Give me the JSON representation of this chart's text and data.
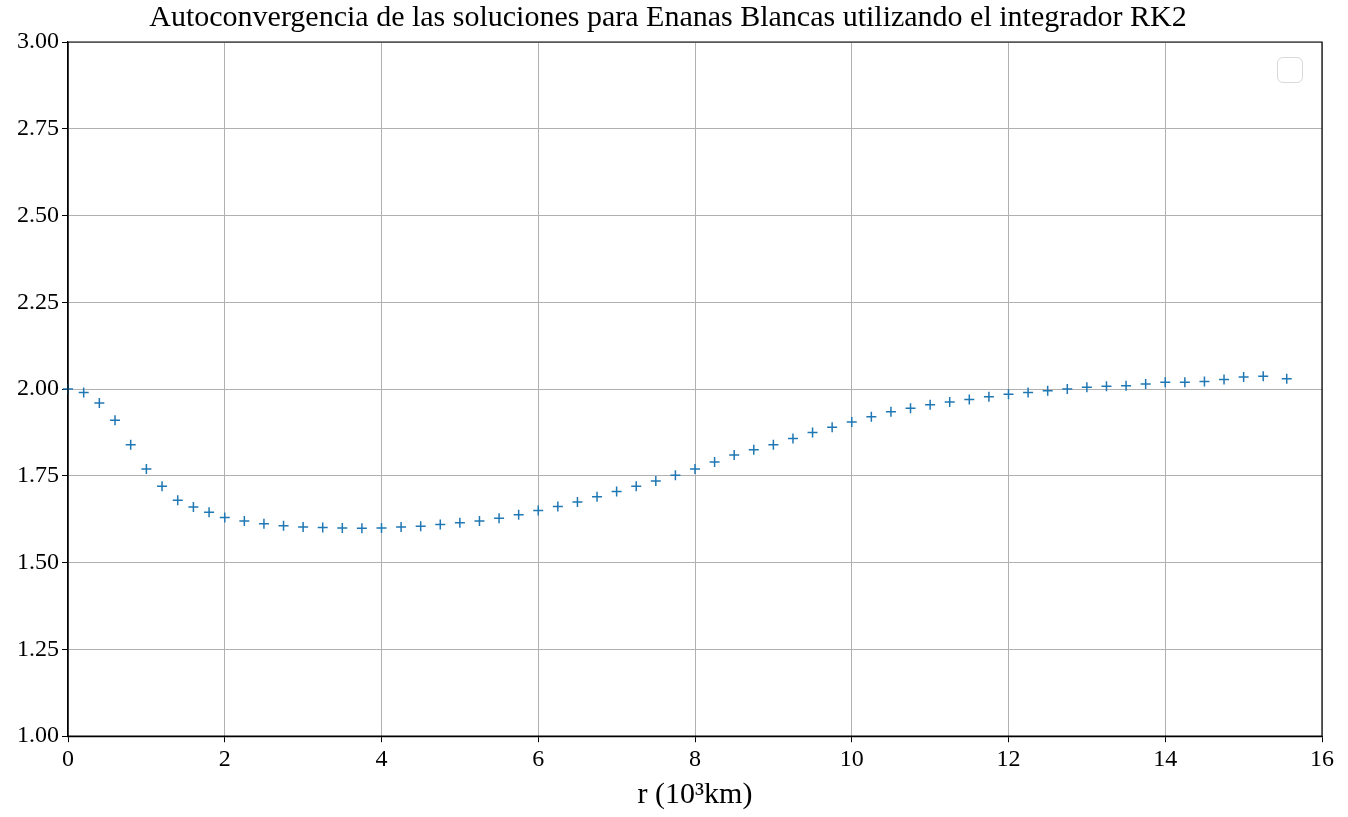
{
  "chart_data": {
    "type": "scatter",
    "title": "Autoconvergencia de las soluciones para Enanas Blancas utilizando el integrador RK2",
    "xlabel": "r (10³km)",
    "x": [
      0,
      0.2,
      0.4,
      0.6,
      0.8,
      1.0,
      1.2,
      1.4,
      1.6,
      1.8,
      2.0,
      2.25,
      2.5,
      2.75,
      3.0,
      3.25,
      3.5,
      3.75,
      4.0,
      4.25,
      4.5,
      4.75,
      5.0,
      5.25,
      5.5,
      5.75,
      6.0,
      6.25,
      6.5,
      6.75,
      7.0,
      7.25,
      7.5,
      7.75,
      8.0,
      8.25,
      8.5,
      8.75,
      9.0,
      9.25,
      9.5,
      9.75,
      10.0,
      10.25,
      10.5,
      10.75,
      11.0,
      11.25,
      11.5,
      11.75,
      12.0,
      12.25,
      12.5,
      12.75,
      13.0,
      13.25,
      13.5,
      13.75,
      14.0,
      14.25,
      14.5,
      14.75,
      15.0,
      15.25,
      15.55
    ],
    "series": [
      {
        "color": "#1f77b4",
        "values": [
          2.0,
          1.99,
          1.96,
          1.91,
          1.84,
          1.77,
          1.72,
          1.68,
          1.66,
          1.645,
          1.63,
          1.62,
          1.612,
          1.606,
          1.603,
          1.601,
          1.6,
          1.599,
          1.6,
          1.603,
          1.605,
          1.61,
          1.615,
          1.62,
          1.628,
          1.638,
          1.65,
          1.662,
          1.675,
          1.69,
          1.705,
          1.72,
          1.735,
          1.752,
          1.77,
          1.79,
          1.81,
          1.825,
          1.84,
          1.858,
          1.875,
          1.89,
          1.905,
          1.92,
          1.935,
          1.945,
          1.955,
          1.963,
          1.97,
          1.978,
          1.985,
          1.99,
          1.995,
          2.0,
          2.005,
          2.008,
          2.01,
          2.015,
          2.02,
          2.02,
          2.022,
          2.028,
          2.035,
          2.037,
          2.03
        ]
      }
    ],
    "xlim": [
      0,
      16
    ],
    "xticks": [
      0,
      2,
      4,
      6,
      8,
      10,
      12,
      14,
      16
    ],
    "ylim": [
      1,
      3
    ],
    "yticks": [
      {
        "value": 1,
        "label": "1.00"
      },
      {
        "value": 1.25,
        "label": "1.25"
      },
      {
        "value": 1.5,
        "label": "1.50"
      },
      {
        "value": 1.75,
        "label": "1.75"
      },
      {
        "value": 2,
        "label": "2.00"
      },
      {
        "value": 2.25,
        "label": "2.25"
      },
      {
        "value": 2.5,
        "label": "2.50"
      },
      {
        "value": 2.75,
        "label": "2.75"
      },
      {
        "value": 3,
        "label": "3.00"
      }
    ],
    "grid": true,
    "marker": "cross"
  }
}
